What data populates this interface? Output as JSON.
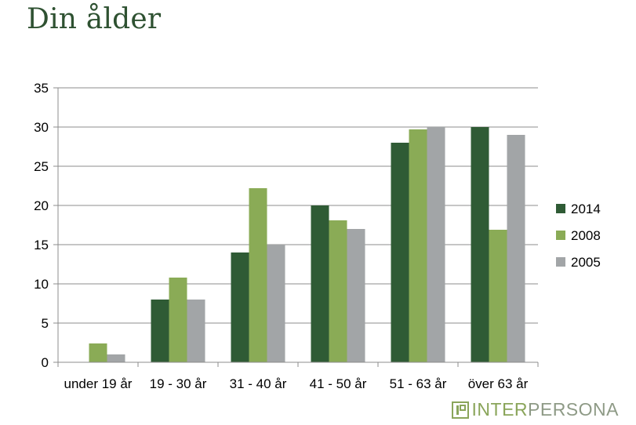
{
  "title": "Din ålder",
  "logo": {
    "part1": "INTER",
    "part2": "PERSONA"
  },
  "colors": {
    "2014": "#2f5b35",
    "2008": "#8aab56",
    "2005": "#a2a5a7"
  },
  "chart_data": {
    "type": "bar",
    "categories": [
      "under 19 år",
      "19 - 30 år",
      "31 - 40 år",
      "41 - 50 år",
      "51 - 63 år",
      "över 63 år"
    ],
    "series": [
      {
        "name": "2014",
        "values": [
          0,
          8,
          14,
          20,
          28,
          30
        ]
      },
      {
        "name": "2008",
        "values": [
          2.4,
          10.8,
          22.2,
          18.1,
          29.7,
          16.9
        ]
      },
      {
        "name": "2005",
        "values": [
          1,
          8,
          15,
          17,
          30,
          29
        ]
      }
    ],
    "ylim": [
      0,
      35
    ],
    "yticks": [
      0,
      5,
      10,
      15,
      20,
      25,
      30,
      35
    ],
    "grid": true,
    "legend": "right"
  }
}
